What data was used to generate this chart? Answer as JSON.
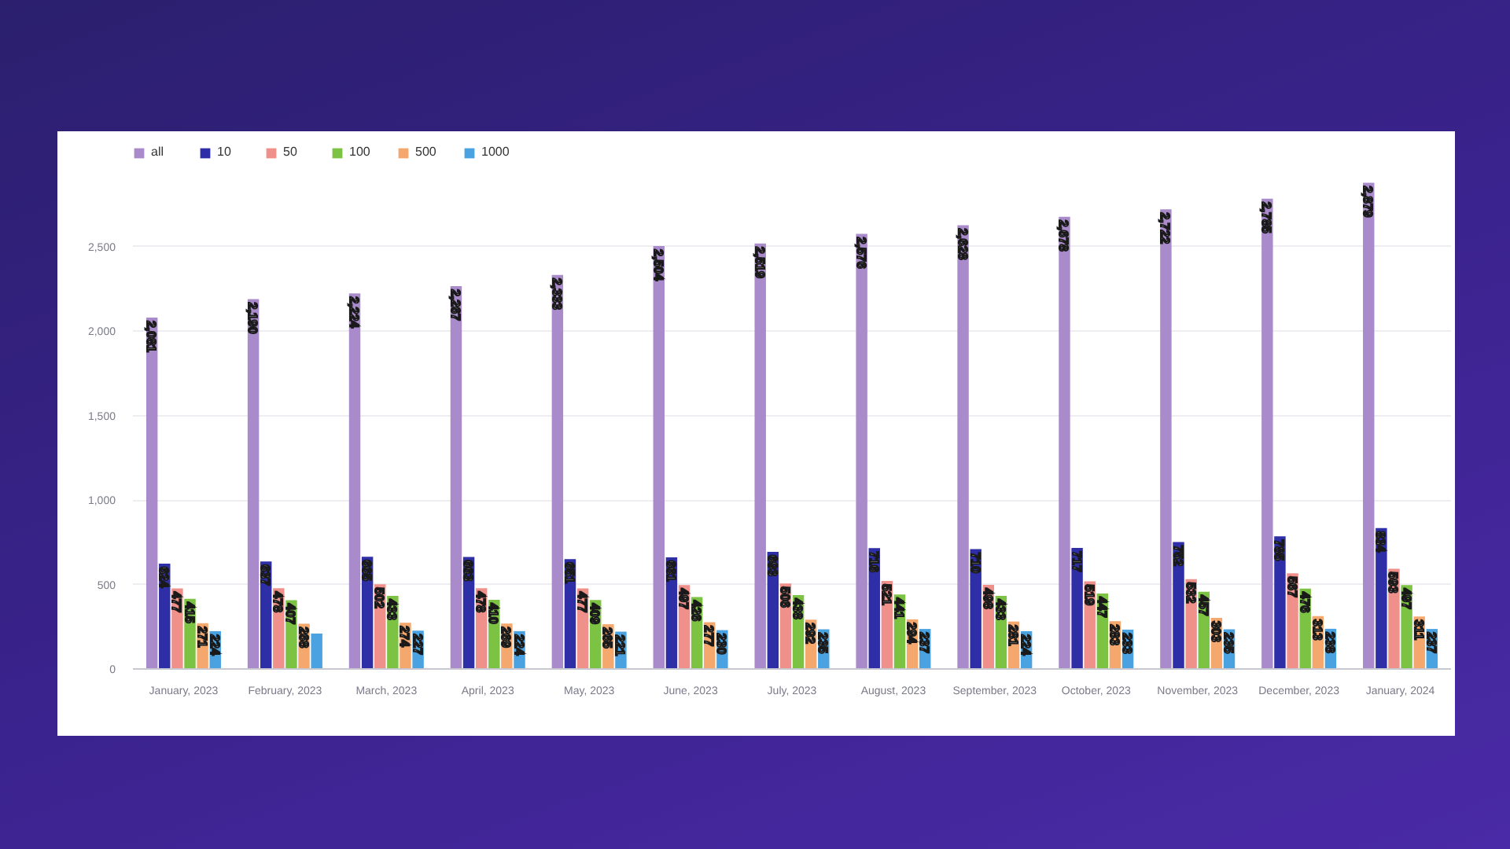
{
  "chart_data": {
    "type": "bar",
    "categories": [
      "January, 2023",
      "February, 2023",
      "March, 2023",
      "April, 2023",
      "May, 2023",
      "June, 2023",
      "July, 2023",
      "August, 2023",
      "September, 2023",
      "October, 2023",
      "November, 2023",
      "December, 2023",
      "January, 2024"
    ],
    "series": [
      {
        "name": "all",
        "color": "#a98bcb",
        "values": [
          2081,
          2190,
          2224,
          2267,
          2333,
          2504,
          2519,
          2576,
          2628,
          2678,
          2722,
          2785,
          2879
        ],
        "value_labels": [
          "2,081",
          "2,190",
          "2,224",
          "2,267",
          "2,333",
          "2,504",
          "2,519",
          "2,576",
          "2,628",
          "2,678",
          "2,722",
          "2,785",
          "2,879"
        ]
      },
      {
        "name": "10",
        "color": "#2e2ea6",
        "values": [
          624,
          637,
          665,
          663,
          651,
          661,
          693,
          716,
          710,
          717,
          752,
          785,
          834
        ],
        "value_labels": [
          "624",
          "637",
          "665",
          "663",
          "651",
          "661",
          "693",
          "716",
          "710",
          "717",
          "752",
          "785",
          "834"
        ]
      },
      {
        "name": "50",
        "color": "#f0908a",
        "values": [
          477,
          478,
          502,
          478,
          477,
          497,
          506,
          521,
          498,
          519,
          532,
          567,
          593
        ],
        "value_labels": [
          "477",
          "478",
          "502",
          "478",
          "477",
          "497",
          "506",
          "521",
          "498",
          "519",
          "532",
          "567",
          "593"
        ]
      },
      {
        "name": "100",
        "color": "#7cc243",
        "values": [
          415,
          407,
          433,
          410,
          409,
          426,
          438,
          441,
          433,
          447,
          457,
          476,
          497
        ],
        "value_labels": [
          "415",
          "407",
          "433",
          "410",
          "409",
          "426",
          "438",
          "441",
          "433",
          "447",
          "457",
          "476",
          "497"
        ]
      },
      {
        "name": "500",
        "color": "#f5a86e",
        "values": [
          271,
          268,
          274,
          269,
          265,
          277,
          292,
          294,
          281,
          283,
          303,
          313,
          311
        ],
        "value_labels": [
          "271",
          "268",
          "274",
          "269",
          "265",
          "277",
          "292",
          "294",
          "281",
          "283",
          "303",
          "313",
          "311"
        ]
      },
      {
        "name": "1000",
        "color": "#4aa3e0",
        "values": [
          224,
          210,
          227,
          224,
          221,
          230,
          235,
          237,
          224,
          233,
          235,
          238,
          237
        ],
        "value_labels": [
          "224",
          null,
          "227",
          "224",
          "221",
          "230",
          "235",
          "237",
          "224",
          "233",
          "235",
          "238",
          "237"
        ]
      }
    ],
    "ylim": [
      0,
      3100
    ],
    "yticks": [
      0,
      500,
      {
        "value": 1000,
        "label": "1,000"
      },
      {
        "value": 1500,
        "label": "1,500"
      },
      {
        "value": 2000,
        "label": "2,000"
      },
      {
        "value": 2500,
        "label": "2,500"
      }
    ],
    "grid": "y",
    "legend": "top left"
  }
}
